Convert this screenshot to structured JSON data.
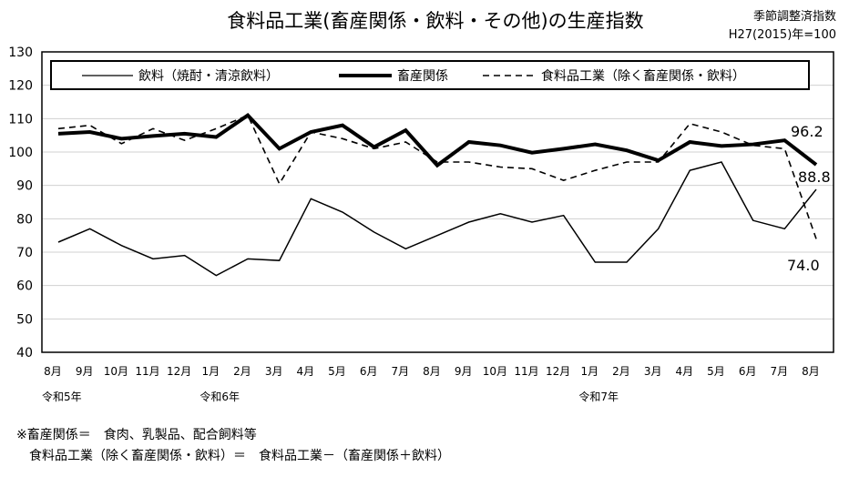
{
  "chart_data": {
    "type": "line",
    "title": "食料品工業(畜産関係・飲料・その他)の生産指数",
    "subtitle_lines": [
      "季節調整済指数",
      "H27(2015)年=100"
    ],
    "categories": [
      "8月",
      "9月",
      "10月",
      "11月",
      "12月",
      "1月",
      "2月",
      "3月",
      "4月",
      "5月",
      "6月",
      "7月",
      "8月",
      "9月",
      "10月",
      "11月",
      "12月",
      "1月",
      "2月",
      "3月",
      "4月",
      "5月",
      "6月",
      "7月",
      "8月"
    ],
    "era_labels": [
      {
        "index": 0,
        "label": "令和5年"
      },
      {
        "index": 5,
        "label": "令和6年"
      },
      {
        "index": 17,
        "label": "令和7年"
      }
    ],
    "ylim": [
      40,
      130
    ],
    "yticks": [
      40,
      50,
      60,
      70,
      80,
      90,
      100,
      110,
      120,
      130
    ],
    "grid": true,
    "legend_position": "top",
    "series": [
      {
        "name": "飲料（焼酎・清涼飲料）",
        "style": "thin-solid",
        "values": [
          73,
          77,
          72,
          68,
          69,
          63,
          68,
          67.5,
          86,
          82,
          76,
          71,
          75,
          79,
          81.5,
          79,
          81,
          67,
          67,
          77,
          94.5,
          97,
          79.5,
          77,
          88.8
        ]
      },
      {
        "name": "畜産関係",
        "style": "thick-solid",
        "values": [
          105.5,
          106,
          104,
          104.8,
          105.5,
          104.5,
          111,
          101,
          106,
          108,
          101.5,
          106.5,
          96,
          103,
          102,
          99.8,
          101,
          102.3,
          100.5,
          97.5,
          103,
          101.8,
          102.3,
          103.5,
          96.2
        ]
      },
      {
        "name": "食料品工業（除く畜産関係・飲料）",
        "style": "dashed",
        "values": [
          107,
          108,
          102.5,
          107,
          103.5,
          107,
          111,
          90.5,
          106,
          104,
          101,
          103,
          97,
          97,
          95.5,
          95,
          91.5,
          94.5,
          97,
          97,
          108.5,
          106,
          102,
          101,
          74.0
        ]
      }
    ],
    "data_labels": {
      "livestock_last": "96.2",
      "beverage_last": "88.8",
      "food_last": "74.0"
    }
  },
  "notes": {
    "line1": "※畜産関係＝　食肉、乳製品、配合飼料等",
    "line2": "　食料品工業（除く畜産関係・飲料）＝　食料品工業－（畜産関係＋飲料）"
  }
}
